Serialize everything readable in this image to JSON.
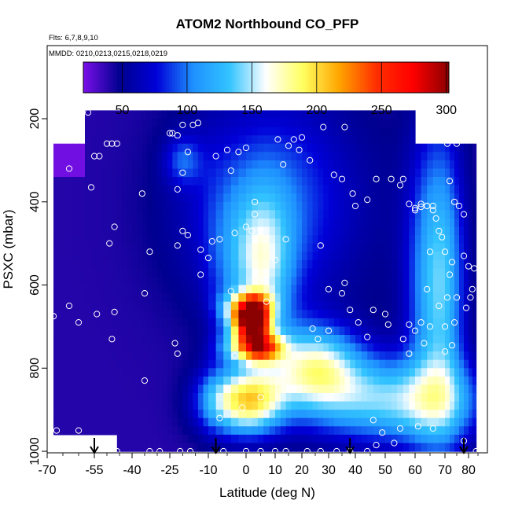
{
  "chart_data": {
    "type": "heatmap",
    "title": "ATOM2 Northbound CO_PFP",
    "subtitle_flights": "Flts: 6,7,8,9,10",
    "subtitle_dates": "MMDD: 0210,0213,0215,0218,0219",
    "xlabel": "Latitude (deg N)",
    "ylabel": "PSXC (mbar)",
    "xlim": [
      -70,
      90
    ],
    "ylim": [
      1000,
      0
    ],
    "x_ticks": [
      -70,
      -55,
      -40,
      -25,
      -10,
      0,
      10,
      20,
      30,
      40,
      50,
      60,
      70,
      80
    ],
    "y_ticks": [
      200,
      400,
      600,
      800,
      1000
    ],
    "colorbar": {
      "min": 20,
      "max": 302,
      "ticks": [
        50,
        100,
        150,
        200,
        250,
        300
      ],
      "colors": [
        "#7a10e8",
        "#00008f",
        "#0000d8",
        "#1e90ff",
        "#33c4ff",
        "#ffffff",
        "#ffff60",
        "#ffa500",
        "#ff3000",
        "#ff0000",
        "#8b0000"
      ]
    },
    "field": {
      "background": 40,
      "blobs": [
        {
          "lat": 2,
          "p": 690,
          "slat": 4,
          "sp": 30,
          "amp": 220
        },
        {
          "lat": 2,
          "p": 650,
          "slat": 5,
          "sp": 25,
          "amp": 110
        },
        {
          "lat": 4,
          "p": 750,
          "slat": 6,
          "sp": 25,
          "amp": 170
        },
        {
          "lat": 0,
          "p": 880,
          "slat": 9,
          "sp": 55,
          "amp": 150
        },
        {
          "lat": 5,
          "p": 560,
          "slat": 8,
          "sp": 130,
          "amp": 90
        },
        {
          "lat": 10,
          "p": 400,
          "slat": 22,
          "sp": 180,
          "amp": 55
        },
        {
          "lat": 68,
          "p": 600,
          "slat": 7,
          "sp": 260,
          "amp": 100
        },
        {
          "lat": 55,
          "p": 880,
          "slat": 22,
          "sp": 70,
          "amp": 100
        },
        {
          "lat": 25,
          "p": 800,
          "slat": 12,
          "sp": 70,
          "amp": 120
        },
        {
          "lat": -20,
          "p": 300,
          "slat": 5,
          "sp": 40,
          "amp": 40
        }
      ],
      "low_region": {
        "lat_max": -58,
        "p_max": 330,
        "value": 22
      }
    },
    "samples": [
      [
        -57,
        185
      ],
      [
        -62,
        200
      ],
      [
        -68,
        210
      ],
      [
        -64,
        225
      ],
      [
        -67,
        240
      ],
      [
        -63,
        320
      ],
      [
        -55,
        290
      ],
      [
        -53,
        290
      ],
      [
        -56,
        365
      ],
      [
        -50,
        260
      ],
      [
        -46,
        260
      ],
      [
        -48,
        260
      ],
      [
        -47,
        460
      ],
      [
        -49,
        500
      ],
      [
        -63,
        650
      ],
      [
        -60,
        690
      ],
      [
        -54,
        670
      ],
      [
        -47,
        665
      ],
      [
        -48,
        730
      ],
      [
        -68,
        675
      ],
      [
        -67,
        950
      ],
      [
        -60,
        950
      ],
      [
        -46,
        1000
      ],
      [
        -35,
        830
      ],
      [
        -33,
        1000
      ],
      [
        -35,
        620
      ],
      [
        -33,
        520
      ],
      [
        -36,
        380
      ],
      [
        -22,
        505
      ],
      [
        -23,
        740
      ],
      [
        -22,
        765
      ],
      [
        -20,
        470
      ],
      [
        -18,
        480
      ],
      [
        -22,
        370
      ],
      [
        -20,
        330
      ],
      [
        -18,
        280
      ],
      [
        -16,
        215
      ],
      [
        -20,
        215
      ],
      [
        -24,
        235
      ],
      [
        -22,
        240
      ],
      [
        -25,
        235
      ],
      [
        -14,
        210
      ],
      [
        -13,
        515
      ],
      [
        -7,
        490
      ],
      [
        -10,
        535
      ],
      [
        -3,
        475
      ],
      [
        0,
        460
      ],
      [
        2,
        470
      ],
      [
        3,
        430
      ],
      [
        -5,
        275
      ],
      [
        -8,
        290
      ],
      [
        -4,
        325
      ],
      [
        -2,
        280
      ],
      [
        0,
        270
      ],
      [
        3,
        400
      ],
      [
        6,
        585
      ],
      [
        7,
        640
      ],
      [
        -4,
        615
      ],
      [
        -3,
        770
      ],
      [
        -9,
        495
      ],
      [
        -13,
        575
      ],
      [
        10,
        540
      ],
      [
        14,
        490
      ],
      [
        11,
        250
      ],
      [
        13,
        310
      ],
      [
        15,
        265
      ],
      [
        17,
        250
      ],
      [
        19,
        275
      ],
      [
        20,
        245
      ],
      [
        23,
        300
      ],
      [
        28,
        220
      ],
      [
        32,
        335
      ],
      [
        36,
        220
      ],
      [
        35,
        345
      ],
      [
        30,
        710
      ],
      [
        24,
        705
      ],
      [
        26,
        730
      ],
      [
        27,
        505
      ],
      [
        30,
        610
      ],
      [
        35,
        620
      ],
      [
        36,
        595
      ],
      [
        38,
        660
      ],
      [
        39,
        380
      ],
      [
        41,
        690
      ],
      [
        40,
        410
      ],
      [
        44,
        395
      ],
      [
        47,
        345
      ],
      [
        52,
        345
      ],
      [
        55,
        360
      ],
      [
        56,
        345
      ],
      [
        58,
        405
      ],
      [
        62,
        405
      ],
      [
        64,
        410
      ],
      [
        60,
        415
      ],
      [
        66,
        420
      ],
      [
        67,
        440
      ],
      [
        72,
        350
      ],
      [
        71,
        260
      ],
      [
        75,
        260
      ],
      [
        78,
        530
      ],
      [
        73,
        545
      ],
      [
        70,
        520
      ],
      [
        69,
        485
      ],
      [
        68,
        470
      ],
      [
        66,
        410
      ],
      [
        64,
        410
      ],
      [
        62,
        412
      ],
      [
        60,
        420
      ],
      [
        65,
        520
      ],
      [
        72,
        575
      ],
      [
        74,
        400
      ],
      [
        76,
        410
      ],
      [
        78,
        430
      ],
      [
        80,
        555
      ],
      [
        83,
        560
      ],
      [
        75,
        630
      ],
      [
        71,
        630
      ],
      [
        68,
        650
      ],
      [
        64,
        610
      ],
      [
        62,
        690
      ],
      [
        60,
        710
      ],
      [
        58,
        695
      ],
      [
        65,
        700
      ],
      [
        70,
        700
      ],
      [
        73,
        745
      ],
      [
        74,
        690
      ],
      [
        79,
        655
      ],
      [
        81,
        630
      ],
      [
        82,
        610
      ],
      [
        70,
        760
      ],
      [
        63,
        740
      ],
      [
        58,
        765
      ],
      [
        56,
        730
      ],
      [
        51,
        695
      ],
      [
        50,
        670
      ],
      [
        46,
        660
      ],
      [
        44,
        725
      ],
      [
        46,
        925
      ],
      [
        49,
        955
      ],
      [
        55,
        945
      ],
      [
        61,
        940
      ],
      [
        66,
        945
      ],
      [
        78,
        975
      ],
      [
        84,
        1000
      ],
      [
        -6,
        1000
      ],
      [
        -17,
        1000
      ],
      [
        -21,
        1000
      ],
      [
        -29,
        1000
      ],
      [
        0,
        1000
      ],
      [
        5,
        1000
      ],
      [
        10,
        1000
      ],
      [
        14,
        1000
      ],
      [
        22,
        1000
      ],
      [
        27,
        1000
      ],
      [
        33,
        1000
      ],
      [
        38,
        1000
      ],
      [
        44,
        1000
      ],
      [
        47,
        985
      ],
      [
        53,
        980
      ],
      [
        -7,
        920
      ],
      [
        -1,
        895
      ],
      [
        5,
        870
      ]
    ],
    "arrows_lat": [
      -55,
      -8,
      38,
      78
    ]
  }
}
